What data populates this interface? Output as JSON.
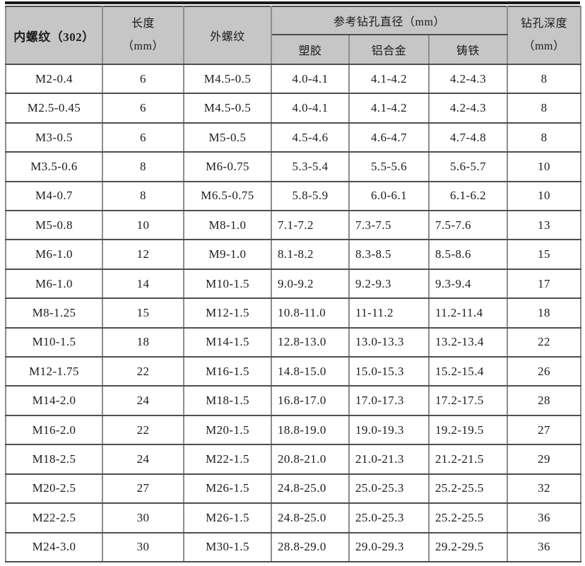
{
  "table": {
    "title_semantic": "thread-insert-drilling-reference",
    "headers": {
      "internal_thread": "内螺纹（302）",
      "length": "长度\n（mm）",
      "external_thread": "外螺纹",
      "drill_diameter_group": "参考钻孔直径（mm）",
      "plastic": "塑胶",
      "aluminum_alloy": "铝合金",
      "cast_iron": "铸铁",
      "drill_depth": "钻孔深度\n（mm）"
    },
    "rows": [
      [
        "M2-0.4",
        "6",
        "M4.5-0.5",
        "4.0-4.1",
        "4.1-4.2",
        "4.2-4.3",
        "8"
      ],
      [
        "M2.5-0.45",
        "6",
        "M4.5-0.5",
        "4.0-4.1",
        "4.1-4.2",
        "4.2-4.3",
        "8"
      ],
      [
        "M3-0.5",
        "6",
        "M5-0.5",
        "4.5-4.6",
        "4.6-4.7",
        "4.7-4.8",
        "8"
      ],
      [
        "M3.5-0.6",
        "8",
        "M6-0.75",
        "5.3-5.4",
        "5.5-5.6",
        "5.6-5.7",
        "10"
      ],
      [
        "M4-0.7",
        "8",
        "M6.5-0.75",
        "5.8-5.9",
        "6.0-6.1",
        "6.1-6.2",
        "10"
      ],
      [
        "M5-0.8",
        "10",
        "M8-1.0",
        "7.1-7.2",
        "7.3-7.5",
        "7.5-7.6",
        "13"
      ],
      [
        "M6-1.0",
        "12",
        "M9-1.0",
        "8.1-8.2",
        "8.3-8.5",
        "8.5-8.6",
        "15"
      ],
      [
        "M6-1.0",
        "14",
        "M10-1.5",
        "9.0-9.2",
        "9.2-9.3",
        "9.3-9.4",
        "17"
      ],
      [
        "M8-1.25",
        "15",
        "M12-1.5",
        "10.8-11.0",
        "11-11.2",
        "11.2-11.4",
        "18"
      ],
      [
        "M10-1.5",
        "18",
        "M14-1.5",
        "12.8-13.0",
        "13.0-13.3",
        "13.2-13.4",
        "22"
      ],
      [
        "M12-1.75",
        "22",
        "M16-1.5",
        "14.8-15.0",
        "15.0-15.3",
        "15.2-15.4",
        "26"
      ],
      [
        "M14-2.0",
        "24",
        "M18-1.5",
        "16.8-17.0",
        "17.0-17.3",
        "17.2-17.5",
        "28"
      ],
      [
        "M16-2.0",
        "22",
        "M20-1.5",
        "18.8-19.0",
        "19.0-19.3",
        "19.2-19.5",
        "27"
      ],
      [
        "M18-2.5",
        "24",
        "M22-1.5",
        "20.8-21.0",
        "21.0-21.3",
        "21.2-21.5",
        "29"
      ],
      [
        "M20-2.5",
        "27",
        "M26-1.5",
        "24.8-25.0",
        "25.0-25.3",
        "25.2-25.5",
        "32"
      ],
      [
        "M22-2.5",
        "30",
        "M26-1.5",
        "24.8-25.0",
        "25.0-25.3",
        "25.2-25.5",
        "36"
      ],
      [
        "M24-3.0",
        "30",
        "M30-1.5",
        "28.8-29.0",
        "29.0-29.3",
        "29.2-29.5",
        "36"
      ]
    ],
    "colors": {
      "header_background": "#c6c6c6",
      "horizontal_grid_line": "#4e4e4e",
      "vertical_grid_line": "#8d8d8d",
      "outer_border": "#3d3d3d",
      "top_rule": "#1a1a1a",
      "text": "#1c1c1c"
    }
  }
}
